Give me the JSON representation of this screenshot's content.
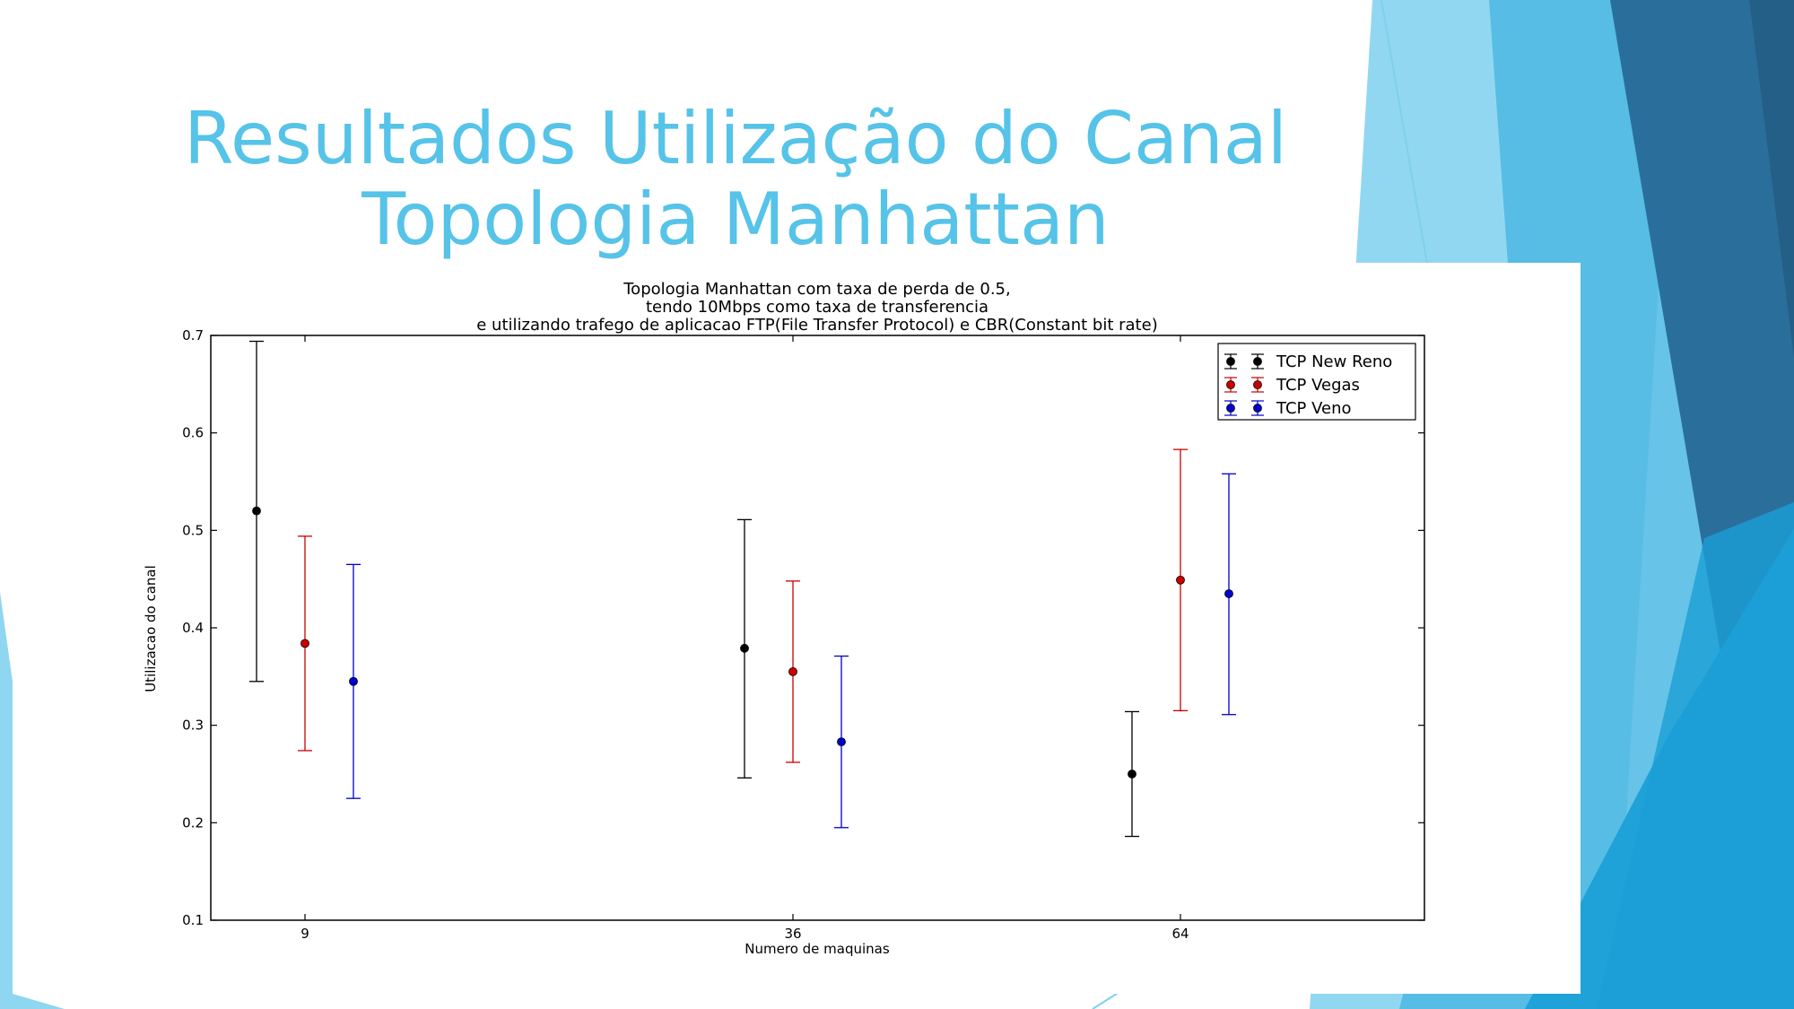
{
  "slide": {
    "title_line_1": "Resultados Utilização do Canal",
    "title_line_2": "Topologia Manhattan",
    "colors": {
      "title": "#56c3e8",
      "accent_dark": "#2a6f9b",
      "accent_mid": "#35a8dc",
      "accent_light": "#7fd0ee"
    }
  },
  "chart_data": {
    "type": "scatter",
    "title_lines": [
      "Topologia Manhattan com taxa de perda de 0.5,",
      "tendo 10Mbps como taxa de transferencia",
      "e utilizando trafego de aplicacao FTP(File Transfer Protocol) e CBR(Constant bit rate)"
    ],
    "xlabel": "Numero de maquinas",
    "ylabel": "Utilizacao do canal",
    "categories": [
      "9",
      "36",
      "64"
    ],
    "ylim": [
      0.1,
      0.7
    ],
    "yticks": [
      "0.1",
      "0.2",
      "0.3",
      "0.4",
      "0.5",
      "0.6",
      "0.7"
    ],
    "grid": false,
    "legend_position": "top-right",
    "error_bars": true,
    "series": [
      {
        "name": "TCP New Reno",
        "color": "#000000",
        "points": [
          {
            "category": "9",
            "y": 0.52,
            "low": 0.345,
            "high": 0.694
          },
          {
            "category": "36",
            "y": 0.379,
            "low": 0.246,
            "high": 0.511
          },
          {
            "category": "64",
            "y": 0.25,
            "low": 0.186,
            "high": 0.314
          }
        ]
      },
      {
        "name": "TCP Vegas",
        "color": "#cc0000",
        "points": [
          {
            "category": "9",
            "y": 0.384,
            "low": 0.274,
            "high": 0.494
          },
          {
            "category": "36",
            "y": 0.355,
            "low": 0.262,
            "high": 0.448
          },
          {
            "category": "64",
            "y": 0.449,
            "low": 0.315,
            "high": 0.583
          }
        ]
      },
      {
        "name": "TCP Veno",
        "color": "#0000cc",
        "points": [
          {
            "category": "9",
            "y": 0.345,
            "low": 0.225,
            "high": 0.465
          },
          {
            "category": "36",
            "y": 0.283,
            "low": 0.195,
            "high": 0.371
          },
          {
            "category": "64",
            "y": 0.435,
            "low": 0.311,
            "high": 0.558
          }
        ]
      }
    ]
  }
}
